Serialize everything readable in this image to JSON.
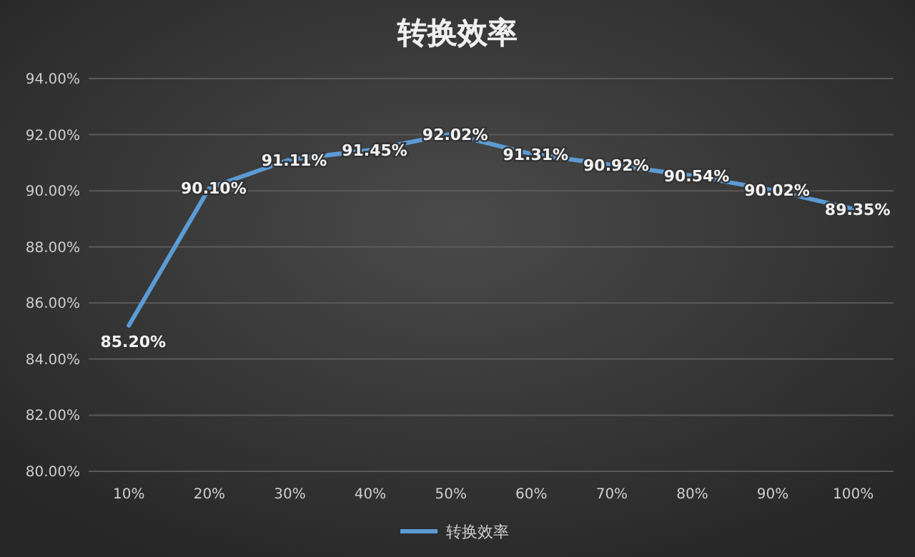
{
  "chart_data": {
    "type": "line",
    "title": "转换效率",
    "categories": [
      "10%",
      "20%",
      "30%",
      "40%",
      "50%",
      "60%",
      "70%",
      "80%",
      "90%",
      "100%"
    ],
    "series": [
      {
        "name": "转换效率",
        "color": "#5b9bd5",
        "values": [
          85.2,
          90.1,
          91.11,
          91.45,
          92.02,
          91.31,
          90.92,
          90.54,
          90.02,
          89.35
        ],
        "value_labels": [
          "85.20%",
          "90.10%",
          "91.11%",
          "91.45%",
          "92.02%",
          "91.31%",
          "90.92%",
          "90.54%",
          "90.02%",
          "89.35%"
        ]
      }
    ],
    "ylim": [
      80,
      94
    ],
    "yticks": [
      {
        "value": 80,
        "label": "80.00%"
      },
      {
        "value": 82,
        "label": "82.00%"
      },
      {
        "value": 84,
        "label": "84.00%"
      },
      {
        "value": 86,
        "label": "86.00%"
      },
      {
        "value": 88,
        "label": "88.00%"
      },
      {
        "value": 90,
        "label": "90.00%"
      },
      {
        "value": 92,
        "label": "92.00%"
      },
      {
        "value": 94,
        "label": "94.00%"
      }
    ],
    "grid": "y",
    "legend": "bottom",
    "line_style": "solid"
  }
}
